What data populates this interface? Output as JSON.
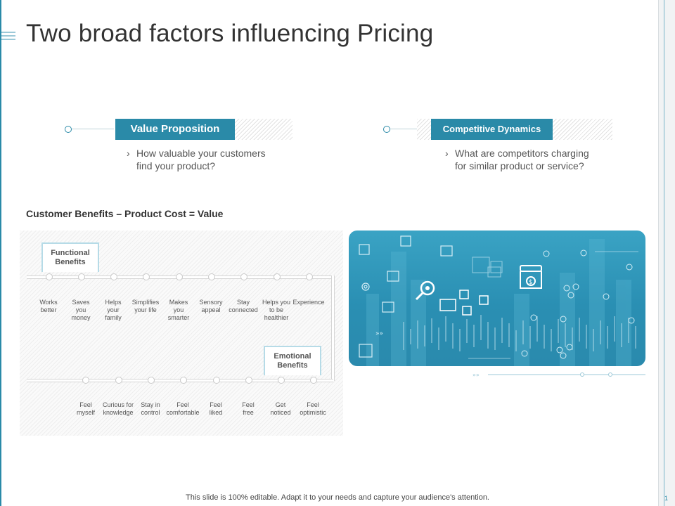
{
  "title": "Two broad factors influencing Pricing",
  "factors": [
    {
      "label": "Value Proposition",
      "question_line1": "How valuable your customers",
      "question_line2": "find your product?"
    },
    {
      "label": "Competitive Dynamics",
      "question_line1": "What are competitors charging",
      "question_line2": "for similar product or service?"
    }
  ],
  "chevron": "›",
  "formula": "Customer Benefits – Product Cost = Value",
  "functional": {
    "heading_line1": "Functional",
    "heading_line2": "Benefits",
    "items": [
      [
        "Works",
        "better",
        ""
      ],
      [
        "Saves",
        "you",
        "money"
      ],
      [
        "Helps",
        "your",
        "family"
      ],
      [
        "Simplifies",
        "your life",
        ""
      ],
      [
        "Makes",
        "you",
        "smarter"
      ],
      [
        "Sensory",
        "appeal",
        ""
      ],
      [
        "Stay",
        "connected",
        ""
      ],
      [
        "Helps you",
        "to be",
        "healthier"
      ],
      [
        "Experience",
        "",
        ""
      ]
    ]
  },
  "emotional": {
    "heading_line1": "Emotional",
    "heading_line2": "Benefits",
    "items": [
      [
        "Feel",
        "myself"
      ],
      [
        "Curious for",
        "knowledge"
      ],
      [
        "Stay in",
        "control"
      ],
      [
        "Feel",
        "comfortable"
      ],
      [
        "Feel",
        "liked"
      ],
      [
        "Feel",
        "free"
      ],
      [
        "Get",
        "noticed"
      ],
      [
        "Feel",
        "optimistic"
      ]
    ]
  },
  "visual_icons": [
    "shop-icon",
    "dollar-coin-icon",
    "gear-icon",
    "magnifier-icon",
    "box-icon",
    "chart-icon",
    "document-icon",
    "building-icon"
  ],
  "footer": "This slide is 100% editable. Adapt it to your needs and capture your audience's attention.",
  "page_number": "1",
  "colors": {
    "accent": "#2a8aa8",
    "visual_bg": "#2f97b9",
    "hatch": "#e2e2e2"
  }
}
